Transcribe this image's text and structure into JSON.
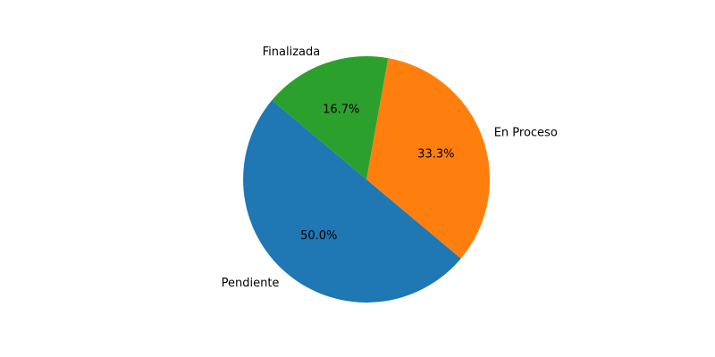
{
  "chart_data": {
    "type": "pie",
    "categories": [
      "Pendiente",
      "En Proceso",
      "Finalizada"
    ],
    "values": [
      50.0,
      33.3,
      16.7
    ],
    "percent_labels": [
      "50.0%",
      "33.3%",
      "16.7%"
    ],
    "colors": [
      "#1f77b4",
      "#ff7f0e",
      "#2ca02c"
    ],
    "start_angle_deg": 140,
    "direction": "counterclockwise"
  }
}
